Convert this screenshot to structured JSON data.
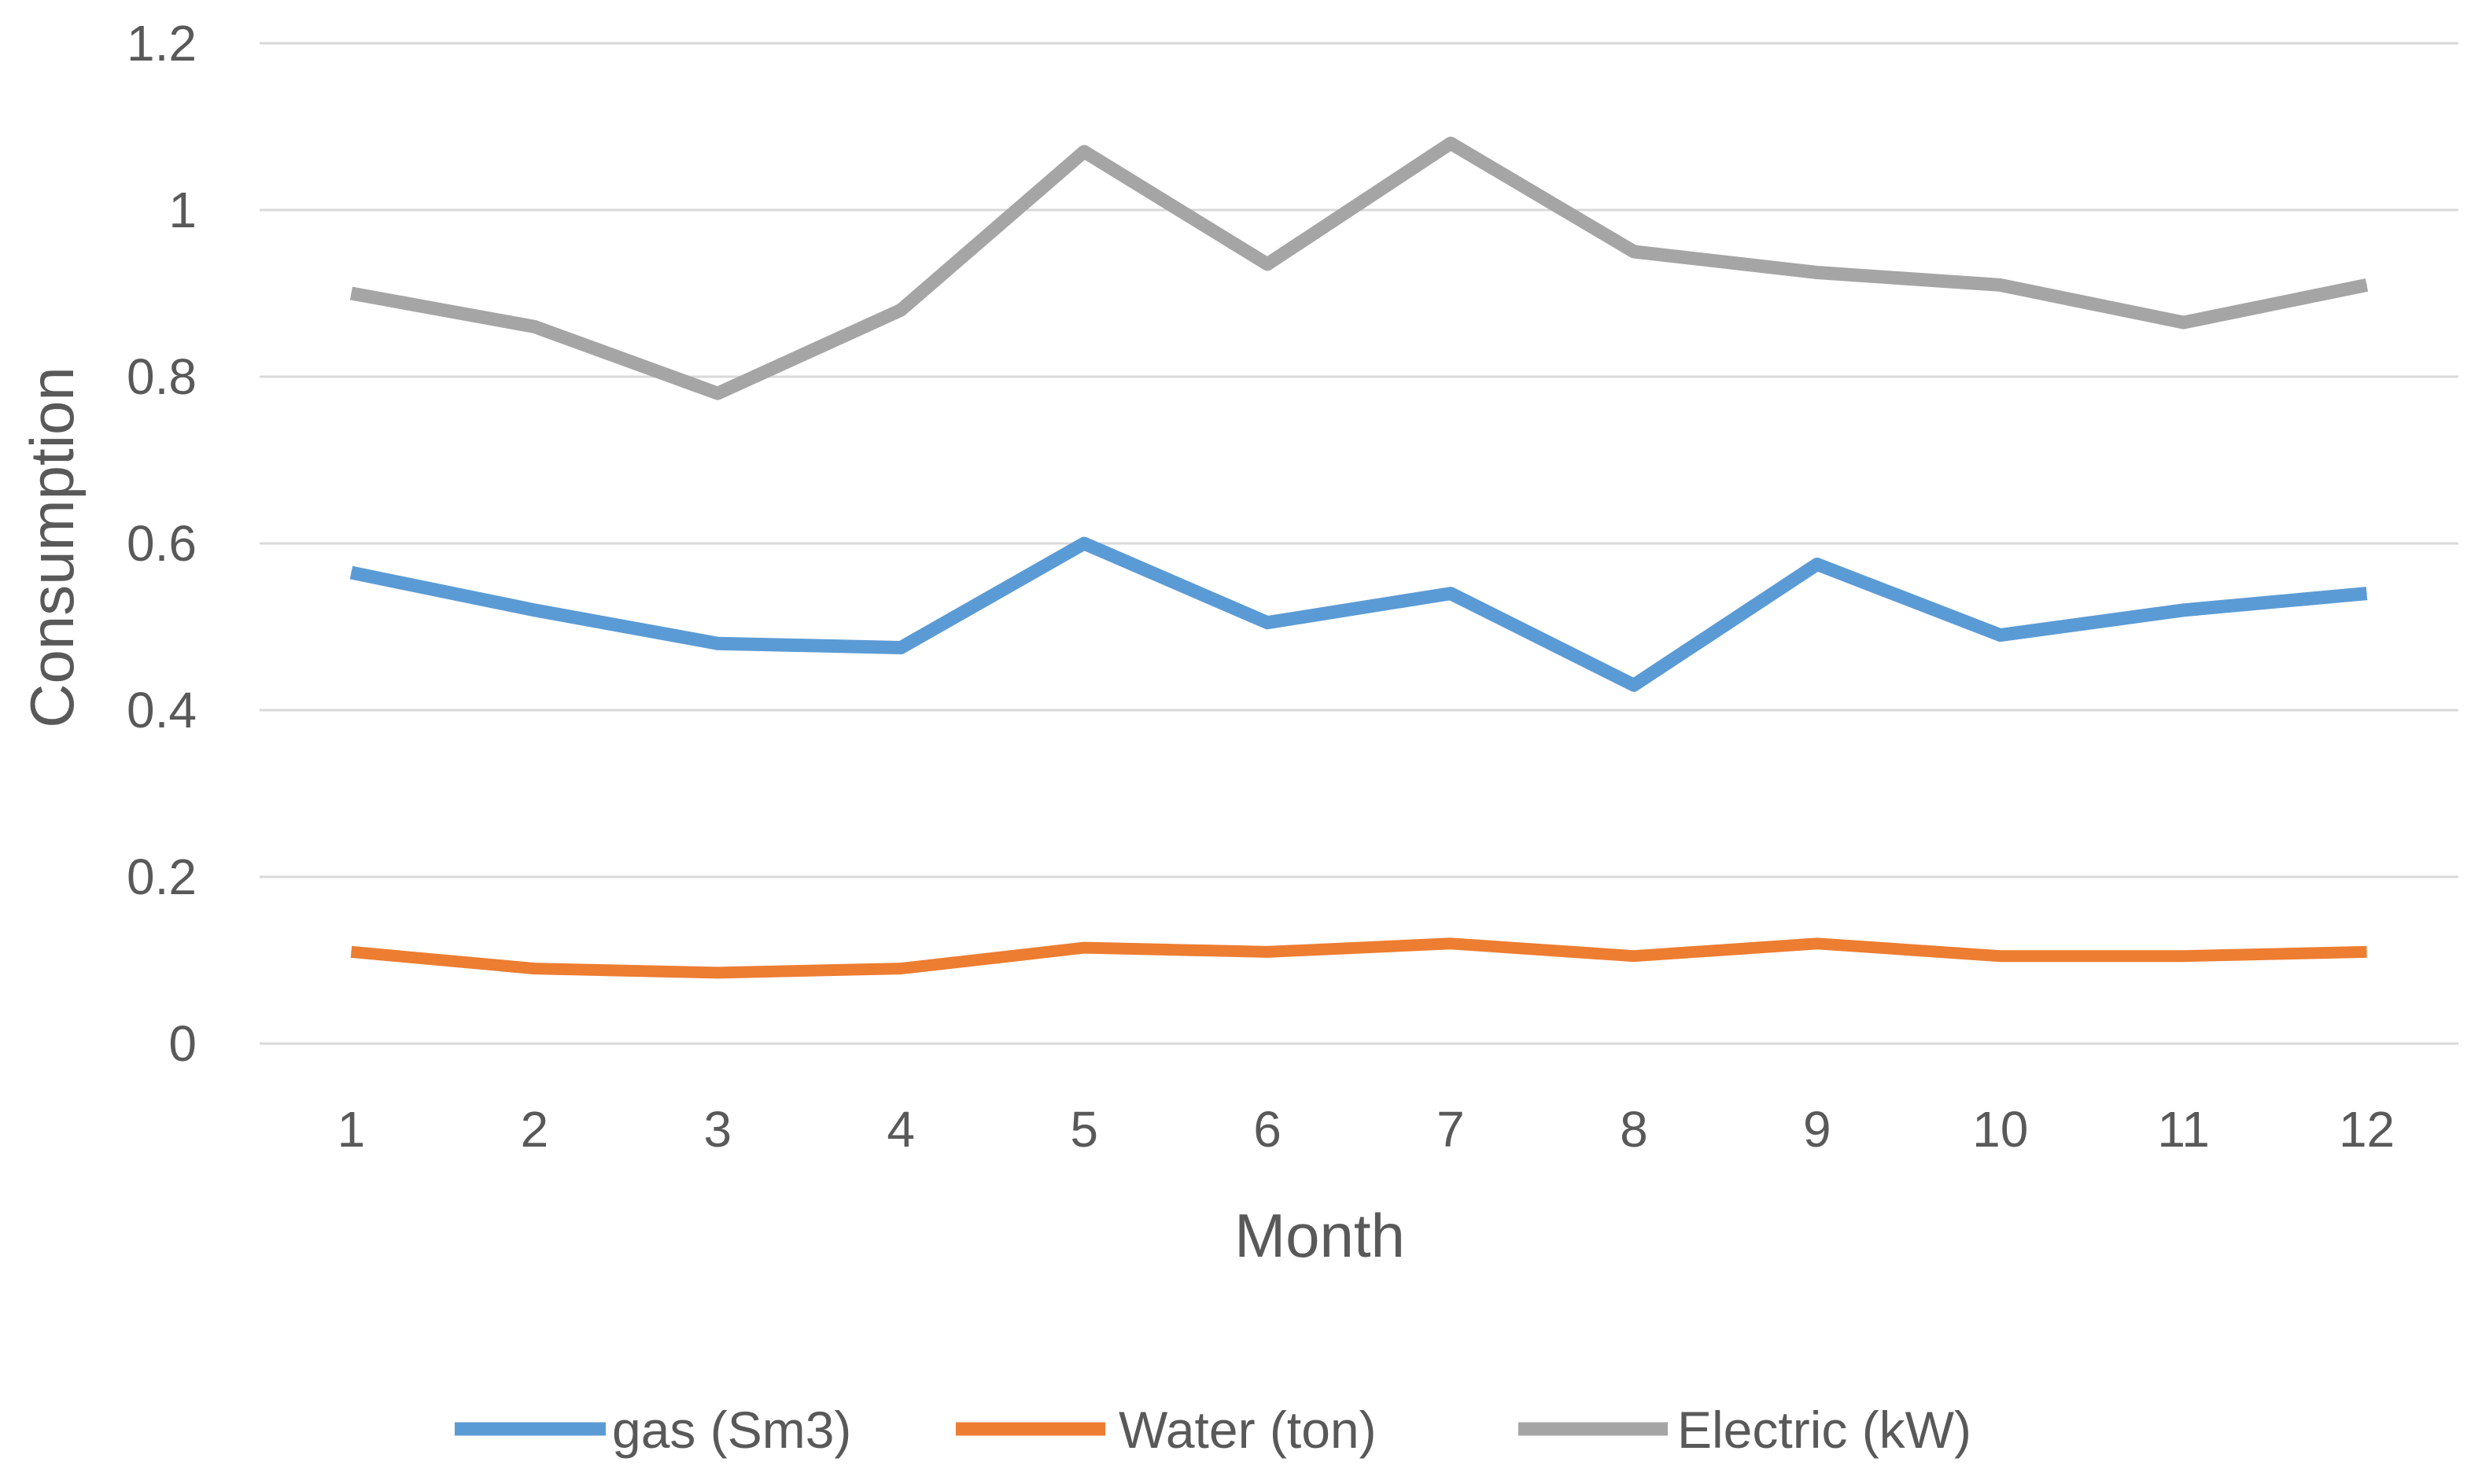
{
  "chart_data": {
    "type": "line",
    "title": "",
    "xlabel": "Month",
    "ylabel": "Consumption",
    "categories": [
      "1",
      "2",
      "3",
      "4",
      "5",
      "6",
      "7",
      "8",
      "9",
      "10",
      "11",
      "12"
    ],
    "ylim": [
      0,
      1.2
    ],
    "yticks": [
      "0",
      "0.2",
      "0.4",
      "0.6",
      "0.8",
      "1",
      "1.2"
    ],
    "grid": true,
    "legend_position": "bottom",
    "series": [
      {
        "name": "gas (Sm3)",
        "color": "#5b9bd5",
        "values": [
          0.565,
          0.52,
          0.48,
          0.475,
          0.6,
          0.505,
          0.54,
          0.43,
          0.575,
          0.49,
          0.52,
          0.54
        ]
      },
      {
        "name": "Water (ton)",
        "color": "#ed7d31",
        "values": [
          0.11,
          0.09,
          0.085,
          0.09,
          0.115,
          0.11,
          0.12,
          0.105,
          0.12,
          0.105,
          0.105,
          0.11
        ]
      },
      {
        "name": "Electric (kW)",
        "color": "#a5a5a5",
        "values": [
          0.9,
          0.86,
          0.78,
          0.88,
          1.07,
          0.935,
          1.08,
          0.95,
          0.925,
          0.91,
          0.865,
          0.91
        ]
      }
    ]
  }
}
